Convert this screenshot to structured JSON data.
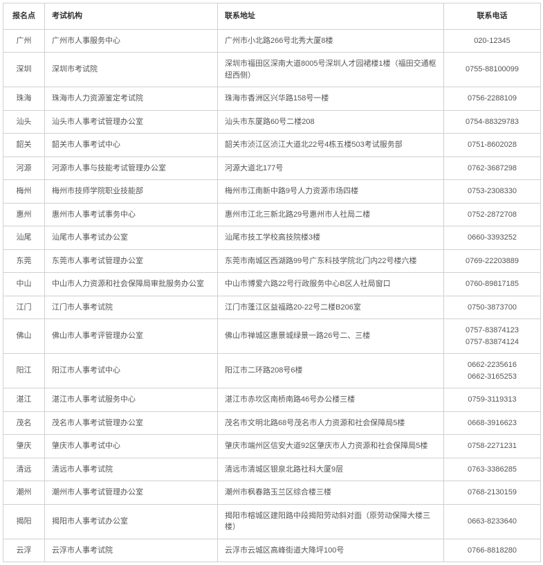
{
  "table": {
    "headers": {
      "location": "报名点",
      "organization": "考试机构",
      "address": "联系地址",
      "phone": "联系电话"
    },
    "rows": [
      {
        "location": "广州",
        "organization": "广州市人事服务中心",
        "address": "广州市小北路266号北秀大厦8楼",
        "phone": "020-12345"
      },
      {
        "location": "深圳",
        "organization": "深圳市考试院",
        "address": "深圳市福田区深南大道8005号深圳人才园裙楼1楼（福田交通枢纽西侧）",
        "phone": "0755-88100099"
      },
      {
        "location": "珠海",
        "organization": "珠海市人力资源鉴定考试院",
        "address": "珠海市香洲区兴华路158号一楼",
        "phone": "0756-2288109"
      },
      {
        "location": "汕头",
        "organization": "汕头市人事考试管理办公室",
        "address": "汕头市东厦路60号二楼208",
        "phone": "0754-88329783"
      },
      {
        "location": "韶关",
        "organization": "韶关市人事考试中心",
        "address": "韶关市浈江区浈江大道北22号4栋五楼503考试服务部",
        "phone": "0751-8602028"
      },
      {
        "location": "河源",
        "organization": "河源市人事与技能考试管理办公室",
        "address": "河源大道北177号",
        "phone": "0762-3687298"
      },
      {
        "location": "梅州",
        "organization": "梅州市技师学院职业技能部",
        "address": "梅州市江南新中路9号人力资源市场四楼",
        "phone": "0753-2308330"
      },
      {
        "location": "惠州",
        "organization": "惠州市人事考试事务中心",
        "address": "惠州市江北三新北路29号惠州市人社局二楼",
        "phone": "0752-2872708"
      },
      {
        "location": "汕尾",
        "organization": "汕尾市人事考试办公室",
        "address": "汕尾市技工学校高技院楼3楼",
        "phone": "0660-3393252"
      },
      {
        "location": "东莞",
        "organization": "东莞市人事考试管理办公室",
        "address": "东莞市南城区西湖路99号广东科技学院北门内22号楼六楼",
        "phone": "0769-22203889"
      },
      {
        "location": "中山",
        "organization": "中山市人力资源和社会保障局审批服务办公室",
        "address": "中山市博爱六路22号行政服务中心B区人社局窗口",
        "phone": "0760-89817185"
      },
      {
        "location": "江门",
        "organization": "江门市人事考试院",
        "address": "江门市蓬江区益福路20-22号二楼B206室",
        "phone": "0750-3873700"
      },
      {
        "location": "佛山",
        "organization": "佛山市人事考评管理办公室",
        "address": "佛山市禅城区惠景城绿景一路26号二、三楼",
        "phone": "0757-83874123\n0757-83874124"
      },
      {
        "location": "阳江",
        "organization": "阳江市人事考试中心",
        "address": "阳江市二环路208号6楼",
        "phone": "0662-2235616\n0662-3165253"
      },
      {
        "location": "湛江",
        "organization": "湛江市人事考试服务中心",
        "address": "湛江市赤坎区南桥南路46号办公楼三楼",
        "phone": "0759-3119313"
      },
      {
        "location": "茂名",
        "organization": "茂名市人事考试管理办公室",
        "address": "茂名市文明北路68号茂名市人力资源和社会保障局5楼",
        "phone": "0668-3916623"
      },
      {
        "location": "肇庆",
        "organization": "肇庆市人事考试中心",
        "address": "肇庆市端州区信安大道92区肇庆市人力资源和社会保障局5楼",
        "phone": "0758-2271231"
      },
      {
        "location": "清远",
        "organization": "清远市人事考试院",
        "address": "清远市清城区银泉北路社科大厦9层",
        "phone": "0763-3386285"
      },
      {
        "location": "潮州",
        "organization": "潮州市人事考试管理办公室",
        "address": "潮州市枫春路玉兰区综合楼三楼",
        "phone": "0768-2130159"
      },
      {
        "location": "揭阳",
        "organization": "揭阳市人事考试办公室",
        "address": "揭阳市榕城区建阳路中段揭阳劳动斜对面（原劳动保障大楼三楼）",
        "phone": "0663-8233640"
      },
      {
        "location": "云浮",
        "organization": "云浮市人事考试院",
        "address": "云浮市云城区高峰街道大降坪100号",
        "phone": "0766-8818280"
      }
    ]
  }
}
